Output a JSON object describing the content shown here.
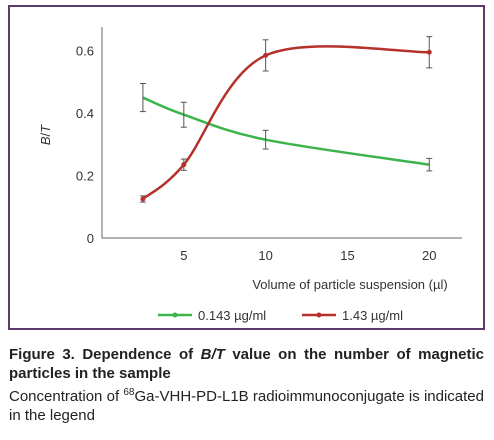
{
  "chart_data": {
    "type": "line",
    "xlabel": "Volume of particle suspension (µl)",
    "ylabel_main": "B/",
    "ylabel_italic": "T",
    "xlim": [
      0,
      22
    ],
    "ylim": [
      0,
      0.66
    ],
    "x_ticks": [
      5,
      10,
      15,
      20
    ],
    "y_ticks": [
      0,
      0.2,
      0.4,
      0.6
    ],
    "y_tick_labels": [
      "0",
      "0.2",
      "0.4",
      "0.6"
    ],
    "grid": false,
    "legend_position": "bottom",
    "series": [
      {
        "name": "0.143 µg/ml",
        "color": "#3cb44b",
        "x": [
          2.5,
          5,
          10,
          20
        ],
        "values": [
          0.45,
          0.395,
          0.315,
          0.235
        ],
        "errors": [
          0.045,
          0.04,
          0.03,
          0.02
        ],
        "marker_at_points": false
      },
      {
        "name": "1.43 µg/ml",
        "color": "#b5312a",
        "x": [
          2.5,
          5,
          10,
          20
        ],
        "values": [
          0.125,
          0.235,
          0.585,
          0.595
        ],
        "errors": [
          0.01,
          0.018,
          0.05,
          0.05
        ],
        "marker_at_points": true
      }
    ]
  },
  "caption": {
    "title_prefix": "Figure 3. Dependence of ",
    "title_italic": "B/T",
    "title_suffix": " value on the number of magnetic particles in the sample",
    "body_prefix": "Concentration of ",
    "body_superscript": "68",
    "body_suffix": "Ga-VHH-PD-L1B radioimmunoconjugate is indicated in the legend"
  }
}
